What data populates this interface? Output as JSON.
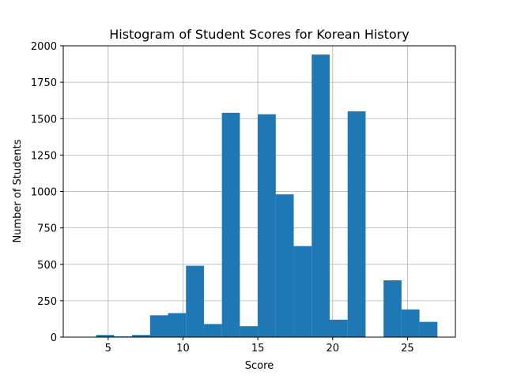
{
  "chart_data": {
    "type": "bar",
    "title": "Histogram of Student Scores for Korean History",
    "xlabel": "Score",
    "ylabel": "Number of Students",
    "xlim": [
      2.0,
      28.2
    ],
    "ylim": [
      0,
      2000
    ],
    "grid": true,
    "bar_color": "#1f77b4",
    "xticks": [
      5,
      10,
      15,
      20,
      25
    ],
    "yticks": [
      0,
      250,
      500,
      750,
      1000,
      1250,
      1500,
      1750,
      2000
    ],
    "bins": [
      {
        "x0": 4.2,
        "x1": 5.4,
        "value": 15
      },
      {
        "x0": 5.4,
        "x1": 6.6,
        "value": 5
      },
      {
        "x0": 6.6,
        "x1": 7.8,
        "value": 15
      },
      {
        "x0": 7.8,
        "x1": 9.0,
        "value": 150
      },
      {
        "x0": 9.0,
        "x1": 10.2,
        "value": 165
      },
      {
        "x0": 10.2,
        "x1": 11.4,
        "value": 490
      },
      {
        "x0": 11.4,
        "x1": 12.6,
        "value": 90
      },
      {
        "x0": 12.6,
        "x1": 13.8,
        "value": 1540
      },
      {
        "x0": 13.8,
        "x1": 15.0,
        "value": 75
      },
      {
        "x0": 15.0,
        "x1": 16.2,
        "value": 1530
      },
      {
        "x0": 16.2,
        "x1": 17.4,
        "value": 980
      },
      {
        "x0": 17.4,
        "x1": 18.6,
        "value": 625
      },
      {
        "x0": 18.6,
        "x1": 19.8,
        "value": 1940
      },
      {
        "x0": 19.8,
        "x1": 21.0,
        "value": 120
      },
      {
        "x0": 21.0,
        "x1": 22.2,
        "value": 1550
      },
      {
        "x0": 22.2,
        "x1": 23.4,
        "value": 0
      },
      {
        "x0": 23.4,
        "x1": 24.6,
        "value": 390
      },
      {
        "x0": 24.6,
        "x1": 25.8,
        "value": 190
      },
      {
        "x0": 25.8,
        "x1": 27.0,
        "value": 105
      }
    ]
  }
}
